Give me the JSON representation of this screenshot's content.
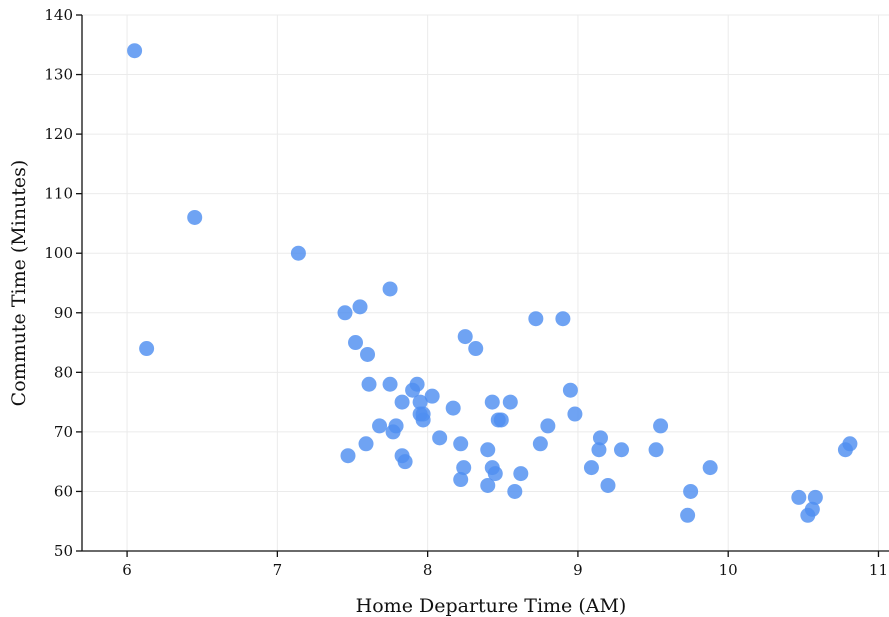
{
  "chart_data": {
    "type": "scatter",
    "title": "",
    "xlabel": "Home Departure Time (AM)",
    "ylabel": "Commute Time (Minutes)",
    "xlim": [
      5.7,
      11.07
    ],
    "ylim": [
      50,
      140
    ],
    "xticks": [
      6,
      7,
      8,
      9,
      10,
      11
    ],
    "yticks": [
      50,
      60,
      70,
      80,
      90,
      100,
      110,
      120,
      130,
      140
    ],
    "grid": true,
    "marker_color": "#4f8ff0",
    "points": [
      {
        "x": 6.05,
        "y": 134
      },
      {
        "x": 6.13,
        "y": 84
      },
      {
        "x": 6.45,
        "y": 106
      },
      {
        "x": 7.14,
        "y": 100
      },
      {
        "x": 7.45,
        "y": 90
      },
      {
        "x": 7.47,
        "y": 66
      },
      {
        "x": 7.52,
        "y": 85
      },
      {
        "x": 7.55,
        "y": 91
      },
      {
        "x": 7.59,
        "y": 68
      },
      {
        "x": 7.6,
        "y": 83
      },
      {
        "x": 7.61,
        "y": 78
      },
      {
        "x": 7.68,
        "y": 71
      },
      {
        "x": 7.75,
        "y": 94
      },
      {
        "x": 7.75,
        "y": 78
      },
      {
        "x": 7.77,
        "y": 70
      },
      {
        "x": 7.79,
        "y": 71
      },
      {
        "x": 7.83,
        "y": 66
      },
      {
        "x": 7.83,
        "y": 75
      },
      {
        "x": 7.85,
        "y": 65
      },
      {
        "x": 7.9,
        "y": 77
      },
      {
        "x": 7.93,
        "y": 78
      },
      {
        "x": 7.95,
        "y": 73
      },
      {
        "x": 7.95,
        "y": 75
      },
      {
        "x": 7.97,
        "y": 72
      },
      {
        "x": 7.97,
        "y": 73
      },
      {
        "x": 8.03,
        "y": 76
      },
      {
        "x": 8.08,
        "y": 69
      },
      {
        "x": 8.17,
        "y": 74
      },
      {
        "x": 8.22,
        "y": 68
      },
      {
        "x": 8.22,
        "y": 62
      },
      {
        "x": 8.24,
        "y": 64
      },
      {
        "x": 8.25,
        "y": 86
      },
      {
        "x": 8.32,
        "y": 84
      },
      {
        "x": 8.4,
        "y": 67
      },
      {
        "x": 8.4,
        "y": 61
      },
      {
        "x": 8.43,
        "y": 75
      },
      {
        "x": 8.43,
        "y": 64
      },
      {
        "x": 8.45,
        "y": 63
      },
      {
        "x": 8.47,
        "y": 72
      },
      {
        "x": 8.49,
        "y": 72
      },
      {
        "x": 8.55,
        "y": 75
      },
      {
        "x": 8.58,
        "y": 60
      },
      {
        "x": 8.62,
        "y": 63
      },
      {
        "x": 8.72,
        "y": 89
      },
      {
        "x": 8.75,
        "y": 68
      },
      {
        "x": 8.8,
        "y": 71
      },
      {
        "x": 8.9,
        "y": 89
      },
      {
        "x": 8.95,
        "y": 77
      },
      {
        "x": 8.98,
        "y": 73
      },
      {
        "x": 9.09,
        "y": 64
      },
      {
        "x": 9.14,
        "y": 67
      },
      {
        "x": 9.15,
        "y": 69
      },
      {
        "x": 9.2,
        "y": 61
      },
      {
        "x": 9.29,
        "y": 67
      },
      {
        "x": 9.52,
        "y": 67
      },
      {
        "x": 9.55,
        "y": 71
      },
      {
        "x": 9.73,
        "y": 56
      },
      {
        "x": 9.75,
        "y": 60
      },
      {
        "x": 9.88,
        "y": 64
      },
      {
        "x": 10.47,
        "y": 59
      },
      {
        "x": 10.53,
        "y": 56
      },
      {
        "x": 10.56,
        "y": 57
      },
      {
        "x": 10.58,
        "y": 59
      },
      {
        "x": 10.78,
        "y": 67
      },
      {
        "x": 10.81,
        "y": 68
      }
    ]
  }
}
